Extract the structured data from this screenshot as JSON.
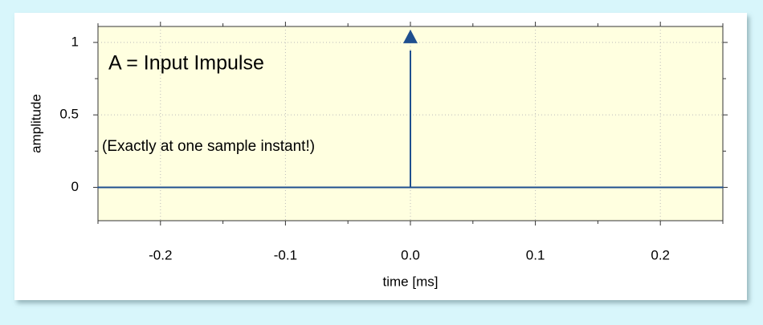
{
  "chart_data": {
    "type": "stem",
    "annotations": [
      "A = Input Impulse",
      "(Exactly at one sample instant!)"
    ],
    "xlabel": "time [ms]",
    "ylabel": "amplitude",
    "x": [
      -0.25,
      0,
      0.25
    ],
    "values": [
      0,
      1,
      0
    ],
    "color": "#1f4f8f",
    "xlim": [
      -0.25,
      0.25
    ],
    "xticks": [
      {
        "value": -0.2,
        "label": "-0.2"
      },
      {
        "value": -0.1,
        "label": "-0.1"
      },
      {
        "value": 0,
        "label": "0.0"
      },
      {
        "value": 0.1,
        "label": "0.1"
      },
      {
        "value": 0.2,
        "label": "0.2"
      }
    ],
    "xminorticks": [
      -0.25,
      -0.15,
      -0.05,
      0.05,
      0.15,
      0.25
    ],
    "ylim": [
      -0.23,
      1.11
    ],
    "yticks": [
      0,
      0.5,
      1
    ],
    "yminorticks": [
      0.25,
      0.75
    ],
    "grid": true
  }
}
